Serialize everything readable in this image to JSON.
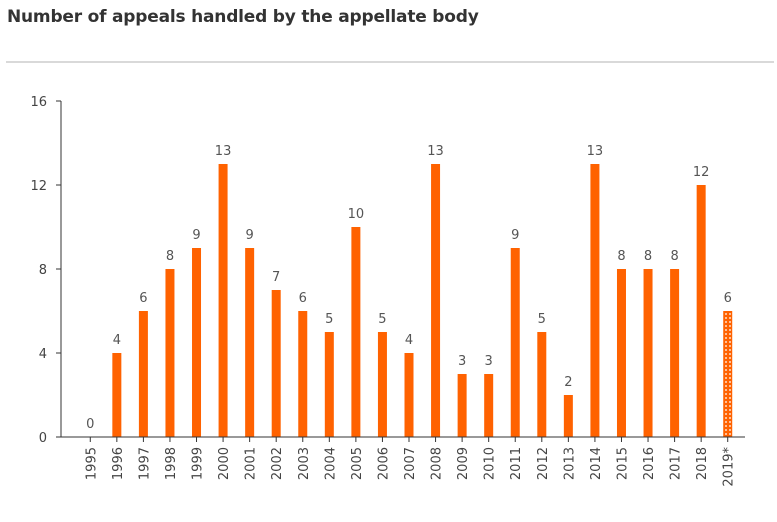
{
  "header": {
    "title": "Number of appeals handled by the appellate body"
  },
  "chart_data": {
    "type": "bar",
    "title": "Number of appeals handled by the appellate body",
    "xlabel": "",
    "ylabel": "",
    "ylim": [
      0,
      16
    ],
    "yticks": [
      0,
      4,
      8,
      12,
      16
    ],
    "categories": [
      "1995",
      "1996",
      "1997",
      "1998",
      "1999",
      "2000",
      "2001",
      "2002",
      "2003",
      "2004",
      "2005",
      "2006",
      "2007",
      "2008",
      "2009",
      "2010",
      "2011",
      "2012",
      "2013",
      "2014",
      "2015",
      "2016",
      "2017",
      "2018",
      "2019*"
    ],
    "values": [
      0,
      4,
      6,
      8,
      9,
      13,
      9,
      7,
      6,
      5,
      10,
      5,
      4,
      13,
      3,
      3,
      9,
      5,
      2,
      13,
      8,
      8,
      8,
      12,
      6
    ],
    "estimated": [
      false,
      false,
      false,
      false,
      false,
      false,
      false,
      false,
      false,
      false,
      false,
      false,
      false,
      false,
      false,
      false,
      false,
      false,
      false,
      false,
      false,
      false,
      false,
      false,
      true
    ],
    "bar_color": "#ff6200",
    "grid": false,
    "legend": "none"
  }
}
